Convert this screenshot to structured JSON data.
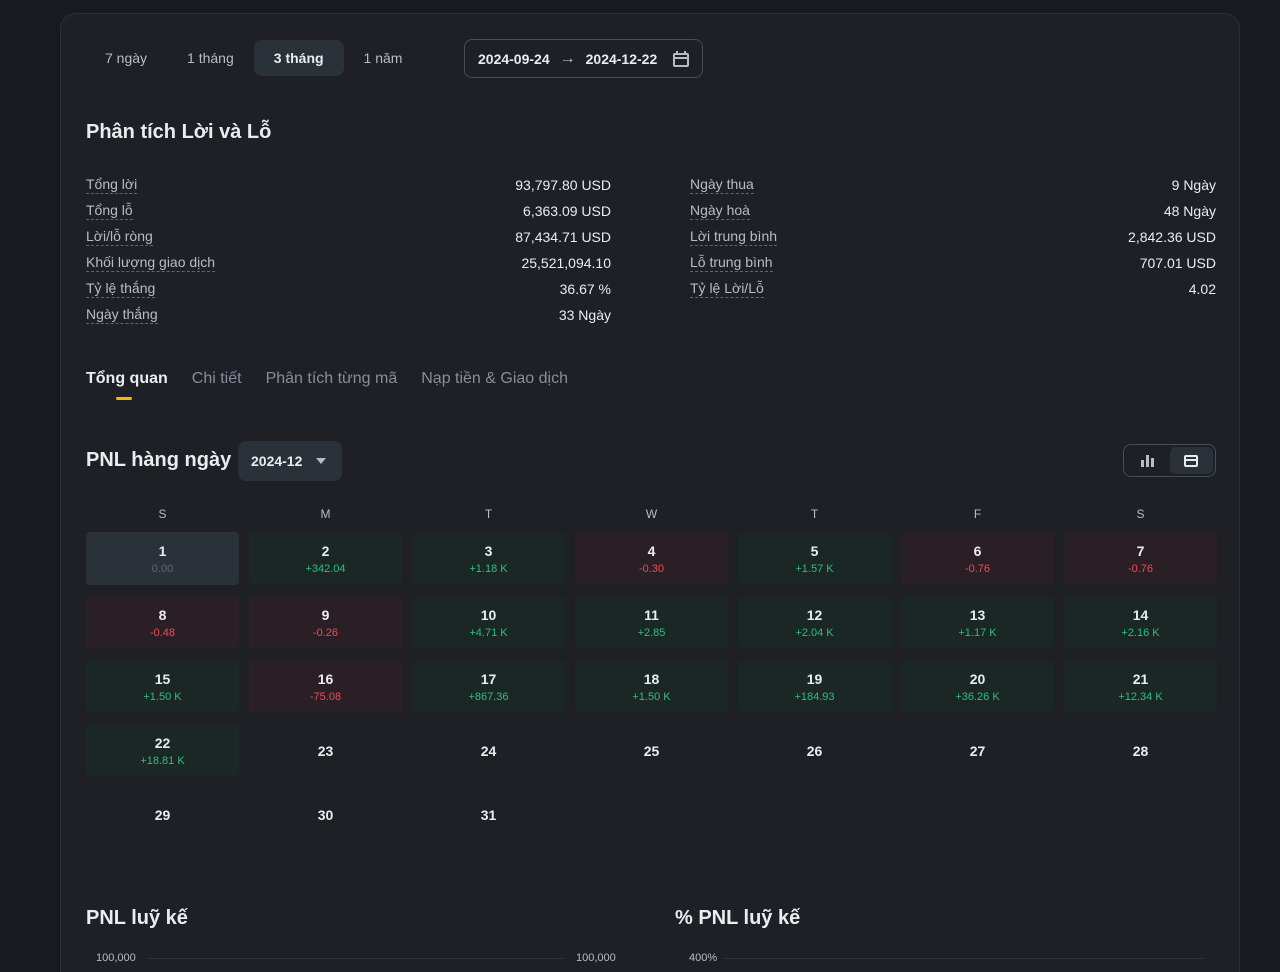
{
  "periods": [
    "7 ngày",
    "1 tháng",
    "3 tháng",
    "1 năm"
  ],
  "active_period": "3 tháng",
  "date_range": {
    "start": "2024-09-24",
    "end": "2024-12-22"
  },
  "analysis": {
    "title": "Phân tích Lời và Lỗ",
    "left": [
      {
        "label": "Tổng lời",
        "value": "93,797.80 USD"
      },
      {
        "label": "Tổng lỗ",
        "value": "6,363.09 USD"
      },
      {
        "label": "Lời/lỗ ròng",
        "value": "87,434.71 USD"
      },
      {
        "label": "Khối lượng giao dịch",
        "value": "25,521,094.10"
      },
      {
        "label": "Tỷ lệ thắng",
        "value": "36.67 %"
      },
      {
        "label": "Ngày thắng",
        "value": "33 Ngày"
      }
    ],
    "right": [
      {
        "label": "Ngày thua",
        "value": "9 Ngày"
      },
      {
        "label": "Ngày hoà",
        "value": "48 Ngày"
      },
      {
        "label": "Lời trung bình",
        "value": "2,842.36 USD"
      },
      {
        "label": "Lỗ trung bình",
        "value": "707.01 USD"
      },
      {
        "label": "Tỷ lệ Lời/Lỗ",
        "value": "4.02"
      }
    ]
  },
  "tabs": [
    "Tổng quan",
    "Chi tiết",
    "Phân tích từng mã",
    "Nạp tiền & Giao dịch"
  ],
  "active_tab": "Tổng quan",
  "daily_pnl": {
    "title": "PNL hàng ngày",
    "month": "2024-12",
    "weekdays": [
      "S",
      "M",
      "T",
      "W",
      "T",
      "F",
      "S"
    ],
    "days": [
      {
        "day": "1",
        "value": "0.00",
        "kind": "zero"
      },
      {
        "day": "2",
        "value": "+342.04",
        "kind": "pos"
      },
      {
        "day": "3",
        "value": "+1.18 K",
        "kind": "pos"
      },
      {
        "day": "4",
        "value": "-0.30",
        "kind": "neg"
      },
      {
        "day": "5",
        "value": "+1.57 K",
        "kind": "pos"
      },
      {
        "day": "6",
        "value": "-0.76",
        "kind": "neg"
      },
      {
        "day": "7",
        "value": "-0.76",
        "kind": "neg"
      },
      {
        "day": "8",
        "value": "-0.48",
        "kind": "neg"
      },
      {
        "day": "9",
        "value": "-0.26",
        "kind": "neg"
      },
      {
        "day": "10",
        "value": "+4.71 K",
        "kind": "pos"
      },
      {
        "day": "11",
        "value": "+2.85",
        "kind": "pos"
      },
      {
        "day": "12",
        "value": "+2.04 K",
        "kind": "pos"
      },
      {
        "day": "13",
        "value": "+1.17 K",
        "kind": "pos"
      },
      {
        "day": "14",
        "value": "+2.16 K",
        "kind": "pos"
      },
      {
        "day": "15",
        "value": "+1.50 K",
        "kind": "pos"
      },
      {
        "day": "16",
        "value": "-75.08",
        "kind": "neg"
      },
      {
        "day": "17",
        "value": "+867.36",
        "kind": "pos"
      },
      {
        "day": "18",
        "value": "+1.50 K",
        "kind": "pos"
      },
      {
        "day": "19",
        "value": "+184.93",
        "kind": "pos"
      },
      {
        "day": "20",
        "value": "+36.26 K",
        "kind": "pos"
      },
      {
        "day": "21",
        "value": "+12.34 K",
        "kind": "pos"
      },
      {
        "day": "22",
        "value": "+18.81 K",
        "kind": "pos"
      },
      {
        "day": "23",
        "value": "",
        "kind": "empty"
      },
      {
        "day": "24",
        "value": "",
        "kind": "empty"
      },
      {
        "day": "25",
        "value": "",
        "kind": "empty"
      },
      {
        "day": "26",
        "value": "",
        "kind": "empty"
      },
      {
        "day": "27",
        "value": "",
        "kind": "empty"
      },
      {
        "day": "28",
        "value": "",
        "kind": "empty"
      },
      {
        "day": "29",
        "value": "",
        "kind": "empty"
      },
      {
        "day": "30",
        "value": "",
        "kind": "empty"
      },
      {
        "day": "31",
        "value": "",
        "kind": "empty"
      }
    ]
  },
  "cumulative": {
    "pnl_title": "PNL luỹ kế",
    "pnl_axis_left": "100,000",
    "pnl_axis_right": "100,000",
    "pct_title": "% PNL luỹ kế",
    "pct_axis": "400%"
  },
  "colors": {
    "accent": "#f0b90b",
    "positive": "#2ebd85",
    "negative": "#f6465d"
  }
}
